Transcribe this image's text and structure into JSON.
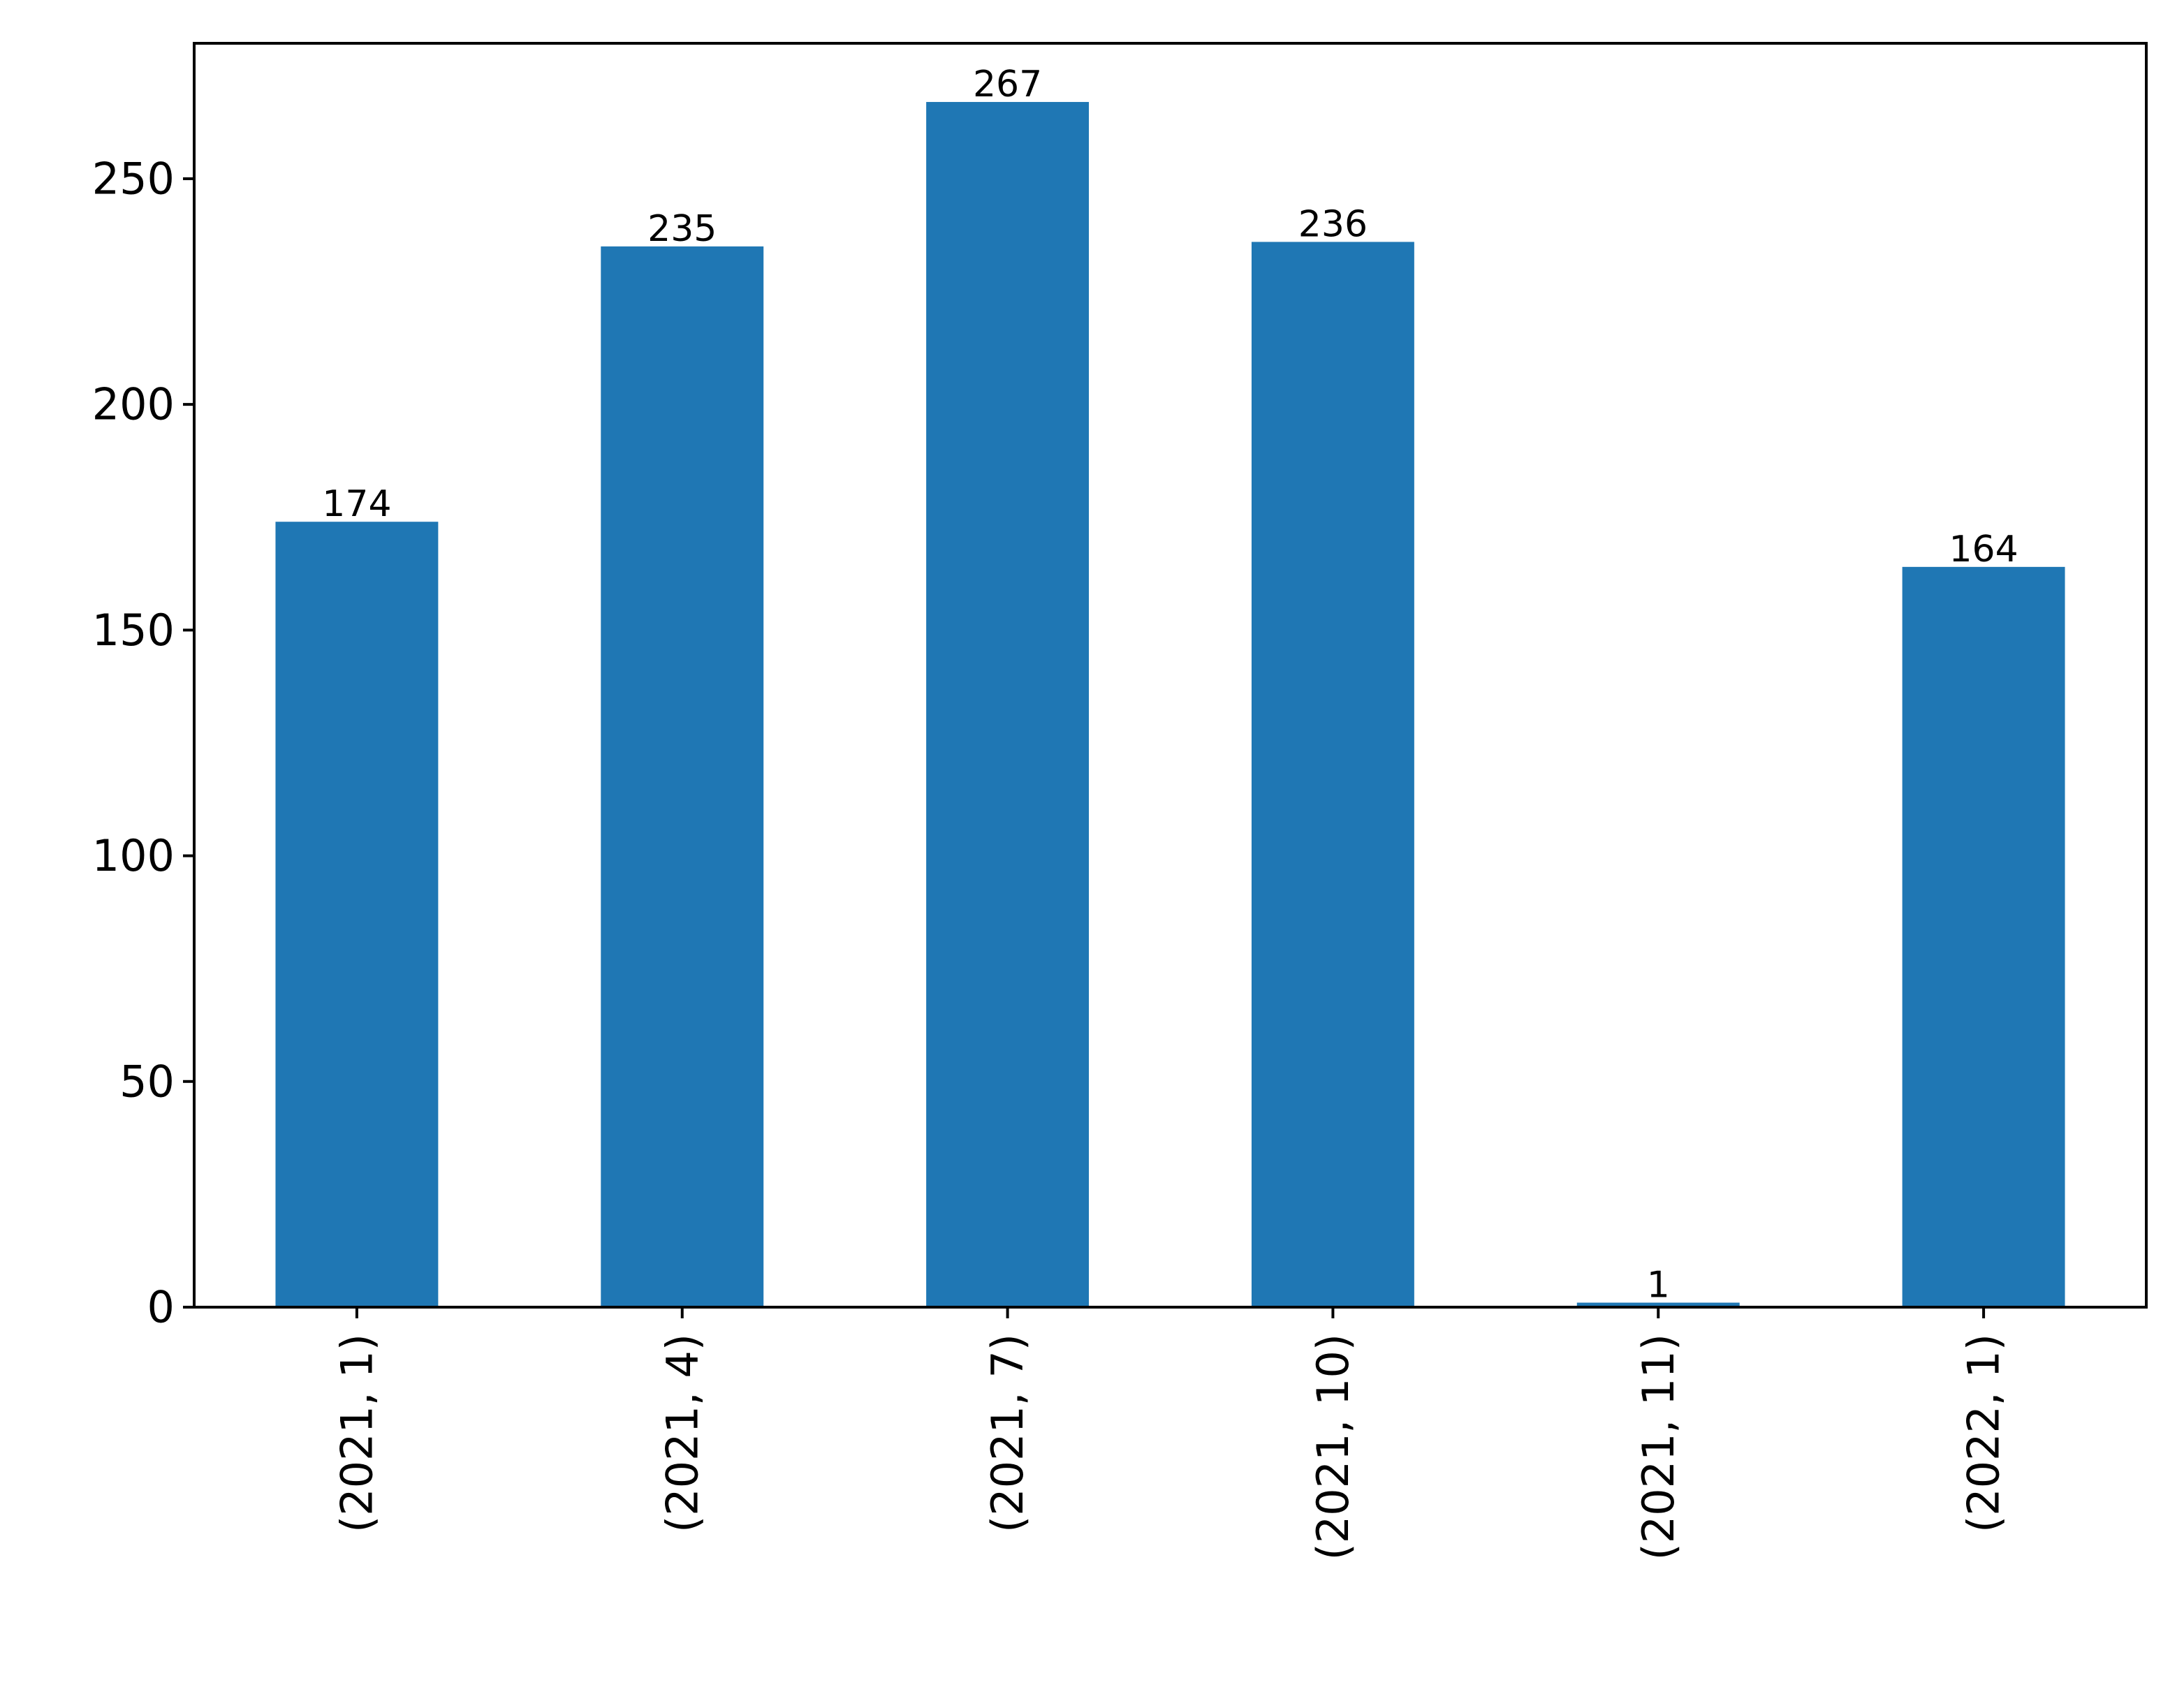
{
  "chart_data": {
    "type": "bar",
    "title": "",
    "xlabel": "",
    "ylabel": "",
    "categories": [
      "(2021, 1)",
      "(2021, 4)",
      "(2021, 7)",
      "(2021, 10)",
      "(2021, 11)",
      "(2022, 1)"
    ],
    "values": [
      174,
      235,
      267,
      236,
      1,
      164
    ],
    "data_labels": [
      "174",
      "235",
      "267",
      "236",
      "1",
      "164"
    ],
    "ylim": [
      0,
      280
    ],
    "yticks": [
      0,
      50,
      100,
      150,
      200,
      250
    ],
    "ytick_labels": [
      "0",
      "50",
      "100",
      "150",
      "200",
      "250"
    ],
    "grid": false,
    "legend": "none",
    "bar_color": "#1f77b4"
  }
}
